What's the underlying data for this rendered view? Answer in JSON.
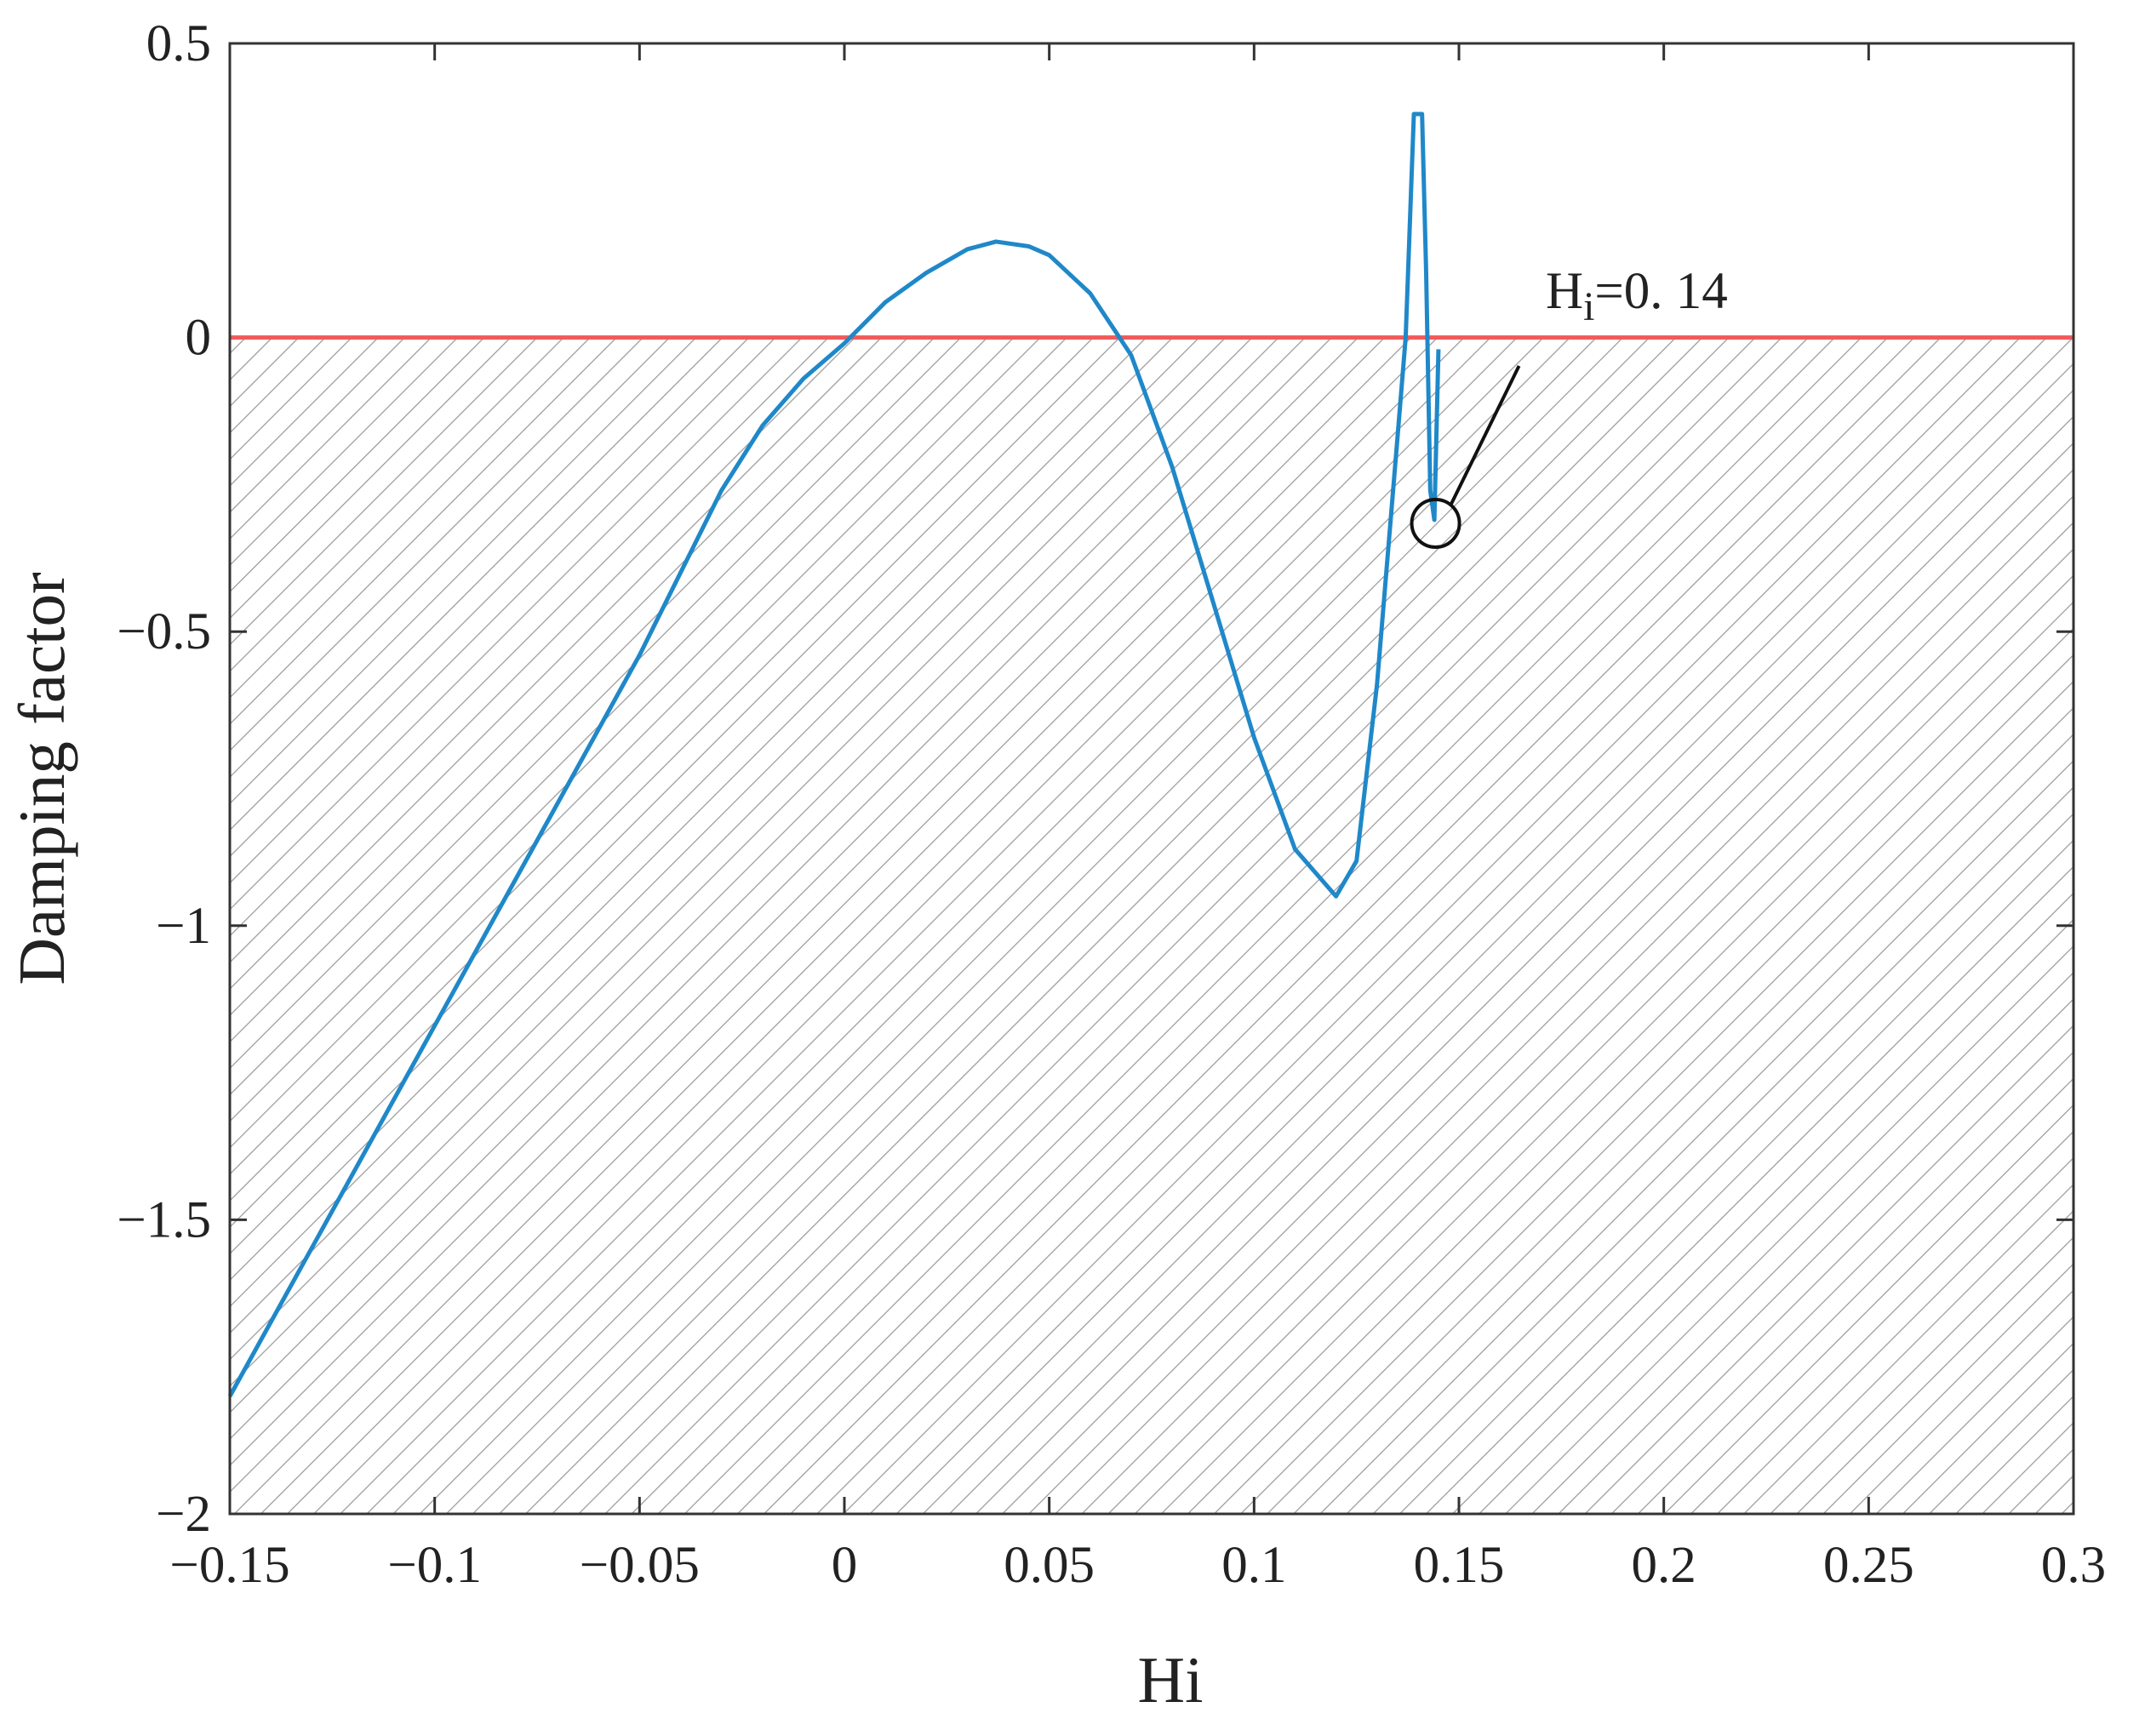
{
  "chart_data": {
    "type": "line",
    "x_label": "Hi",
    "y_label": "Damping factor",
    "x": [
      -0.15,
      -0.1,
      -0.05,
      -0.03,
      -0.02,
      -0.01,
      0,
      0.01,
      0.02,
      0.03,
      0.037,
      0.045,
      0.05,
      0.06,
      0.07,
      0.08,
      0.09,
      0.1,
      0.11,
      0.12,
      0.125,
      0.13,
      0.135,
      0.137,
      0.139,
      0.141,
      0.142,
      0.143,
      0.144,
      0.145
    ],
    "series": [
      {
        "color": "#1f88c9",
        "values": [
          -1.8,
          -1.17,
          -0.54,
          -0.26,
          -0.15,
          -0.07,
          -0.01,
          0.06,
          0.11,
          0.15,
          0.163,
          0.155,
          0.14,
          0.075,
          -0.03,
          -0.22,
          -0.45,
          -0.68,
          -0.87,
          -0.95,
          -0.89,
          -0.59,
          -0.17,
          0,
          0.38,
          0.38,
          0.11,
          -0.26,
          -0.31,
          -0.02
        ]
      }
    ],
    "reference_line": {
      "value": 0,
      "color": "#f25a5a"
    },
    "annotation": {
      "text": "H",
      "subscript": "i",
      "suffix": "=0. 14",
      "x": 0.1443,
      "y": -0.316
    },
    "xlim": [
      -0.15,
      0.3
    ],
    "ylim": [
      -2,
      0.5
    ],
    "xticks": [
      {
        "value": -0.15,
        "label": "−0.15"
      },
      {
        "value": -0.1,
        "label": "−0.1"
      },
      {
        "value": -0.05,
        "label": "−0.05"
      },
      0,
      0.05,
      0.1,
      0.15,
      0.2,
      0.25,
      0.3
    ],
    "yticks": [
      0.5,
      0,
      {
        "value": -0.5,
        "label": "−0.5"
      },
      {
        "value": -1,
        "label": "−1"
      },
      {
        "value": -1.5,
        "label": "−1.5"
      },
      {
        "value": -2,
        "label": "−2"
      }
    ],
    "hatch_below_reference": true
  }
}
